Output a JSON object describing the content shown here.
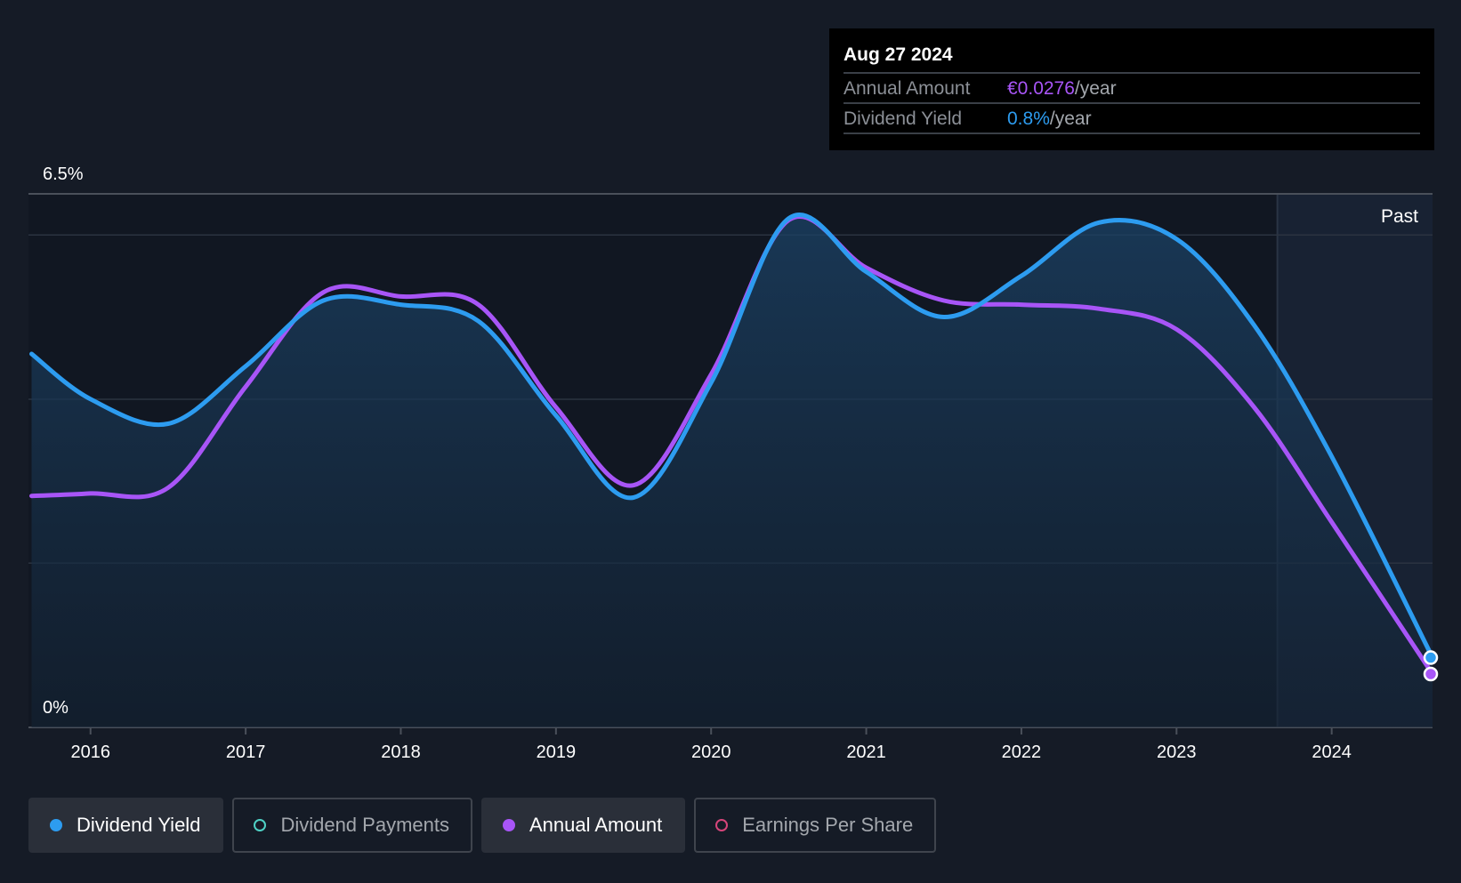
{
  "tooltip": {
    "date": "Aug 27 2024",
    "rows": [
      {
        "label": "Annual Amount",
        "value": "€0.0276",
        "unit": "/year"
      },
      {
        "label": "Dividend Yield",
        "value": "0.8%",
        "unit": "/year"
      }
    ]
  },
  "past_label": "Past",
  "legend": [
    {
      "label": "Dividend Yield",
      "color": "#2d9cf0",
      "active": true
    },
    {
      "label": "Dividend Payments",
      "color": "#4fd1c5",
      "active": false
    },
    {
      "label": "Annual Amount",
      "color": "#a855f7",
      "active": true
    },
    {
      "label": "Earnings Per Share",
      "color": "#d6457a",
      "active": false
    }
  ],
  "chart_data": {
    "type": "line",
    "y_top_label": "6.5%",
    "y_bottom_label": "0%",
    "ylim": [
      0,
      6.5
    ],
    "xlim": [
      2015.6,
      2024.65
    ],
    "x_ticks": [
      2016,
      2017,
      2018,
      2019,
      2020,
      2021,
      2022,
      2023,
      2024
    ],
    "x_tick_labels": [
      "2016",
      "2017",
      "2018",
      "2019",
      "2020",
      "2021",
      "2022",
      "2023",
      "2024"
    ],
    "past_start": 2023.65,
    "grid": true,
    "series": [
      {
        "name": "Dividend Yield",
        "color": "#2d9cf0",
        "x": [
          2015.62,
          2016.0,
          2016.5,
          2017.0,
          2017.5,
          2018.0,
          2018.5,
          2019.0,
          2019.5,
          2020.0,
          2020.5,
          2021.0,
          2021.5,
          2022.0,
          2022.5,
          2023.0,
          2023.5,
          2024.0,
          2024.65
        ],
        "y": [
          4.55,
          4.0,
          3.7,
          4.4,
          5.2,
          5.15,
          4.95,
          3.8,
          2.8,
          4.2,
          6.2,
          5.55,
          5.0,
          5.5,
          6.15,
          5.95,
          4.9,
          3.3,
          0.85
        ]
      },
      {
        "name": "Annual Amount",
        "color": "#a855f7",
        "x": [
          2015.62,
          2016.0,
          2016.5,
          2017.0,
          2017.5,
          2018.0,
          2018.5,
          2019.0,
          2019.5,
          2020.0,
          2020.5,
          2021.0,
          2021.5,
          2022.0,
          2022.5,
          2023.0,
          2023.5,
          2024.0,
          2024.65
        ],
        "y": [
          2.82,
          2.85,
          2.92,
          4.15,
          5.3,
          5.25,
          5.15,
          3.9,
          2.95,
          4.3,
          6.18,
          5.6,
          5.2,
          5.15,
          5.1,
          4.85,
          3.9,
          2.5,
          0.65
        ]
      }
    ]
  }
}
